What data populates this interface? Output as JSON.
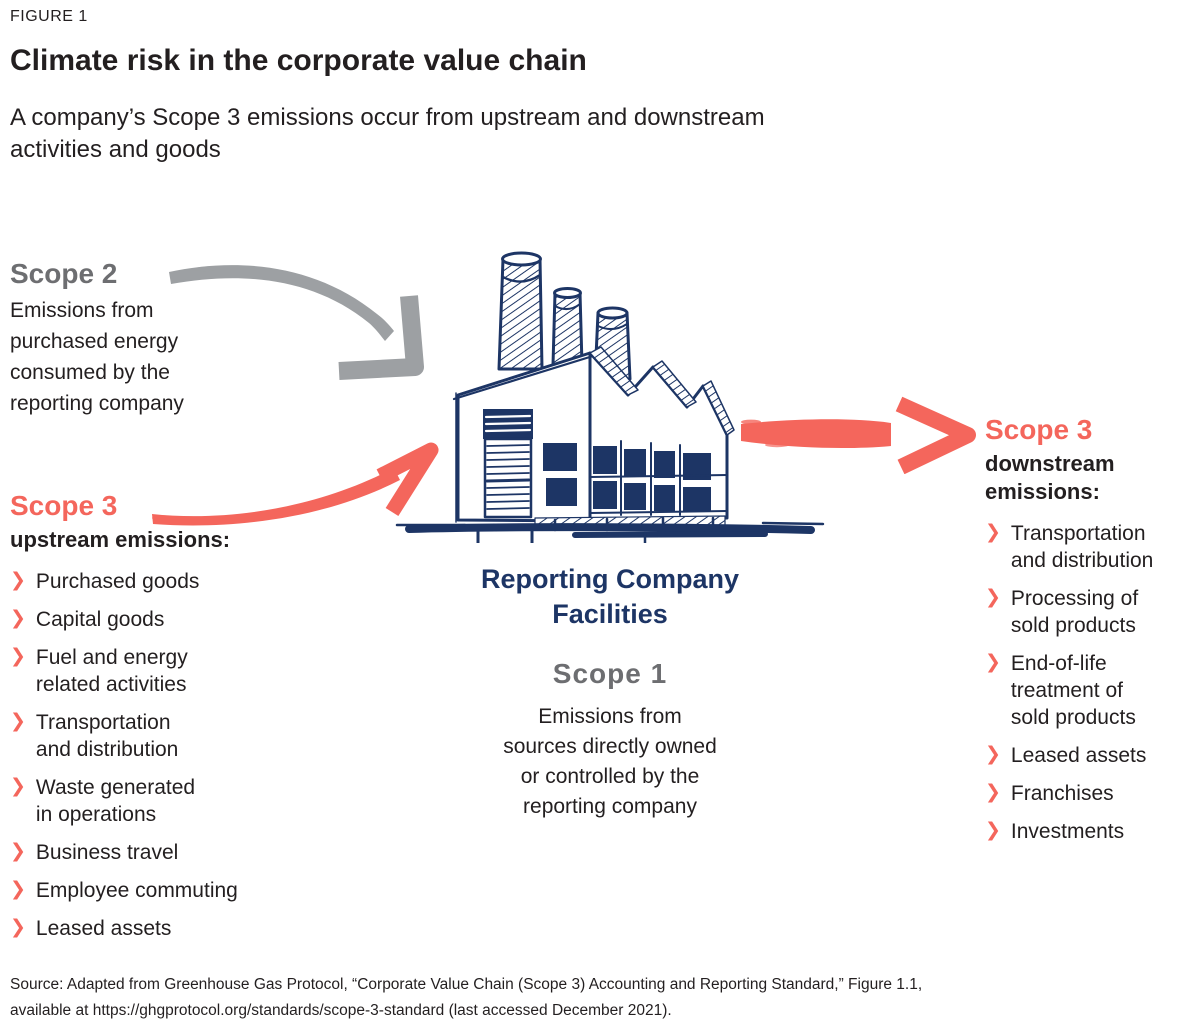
{
  "figure_label": "FIGURE 1",
  "title": "Climate risk in the corporate value chain",
  "subtitle": "A company’s Scope 3 emissions occur from upstream and downstream\nactivities and goods",
  "colors": {
    "navy": "#1d3565",
    "coral": "#f4665c",
    "heading_gray": "#6d6e71",
    "arrow_gray": "#9da0a3",
    "text": "#231f20"
  },
  "icons": {
    "bullet_glyph": "❯",
    "scope2_arrow": "gray brush arrow pointing down-right to factory",
    "upstream_arrow": "coral brush arrow pointing up-right to factory",
    "downstream_arrow": "coral brush arrow pointing right away from factory",
    "factory": "hand-drawn navy factory sketch with three chimneys and sawtooth roof"
  },
  "scope2": {
    "heading": "Scope 2",
    "description": "Emissions from\npurchased energy\nconsumed by the\nreporting company"
  },
  "scope3_upstream": {
    "heading": "Scope 3",
    "subheading": "upstream emissions:",
    "items": [
      "Purchased goods",
      "Capital goods",
      "Fuel and energy\nrelated activities",
      "Transportation\nand distribution",
      "Waste generated\nin operations",
      "Business travel",
      "Employee commuting",
      "Leased assets"
    ]
  },
  "facility": {
    "label": "Reporting Company\nFacilities"
  },
  "scope1": {
    "heading": "Scope 1",
    "description": "Emissions from\nsources directly owned\nor controlled by the\nreporting company"
  },
  "scope3_downstream": {
    "heading": "Scope 3",
    "subheading": "downstream\nemissions:",
    "items": [
      "Transportation\nand distribution",
      "Processing of\nsold products",
      "End-of-life\ntreatment of\nsold products",
      "Leased assets",
      "Franchises",
      "Investments"
    ]
  },
  "source": "Source: Adapted from Greenhouse Gas Protocol, “Corporate Value Chain (Scope 3) Accounting and Reporting Standard,” Figure 1.1,\navailable at https://ghgprotocol.org/standards/scope-3-standard (last accessed December 2021)."
}
